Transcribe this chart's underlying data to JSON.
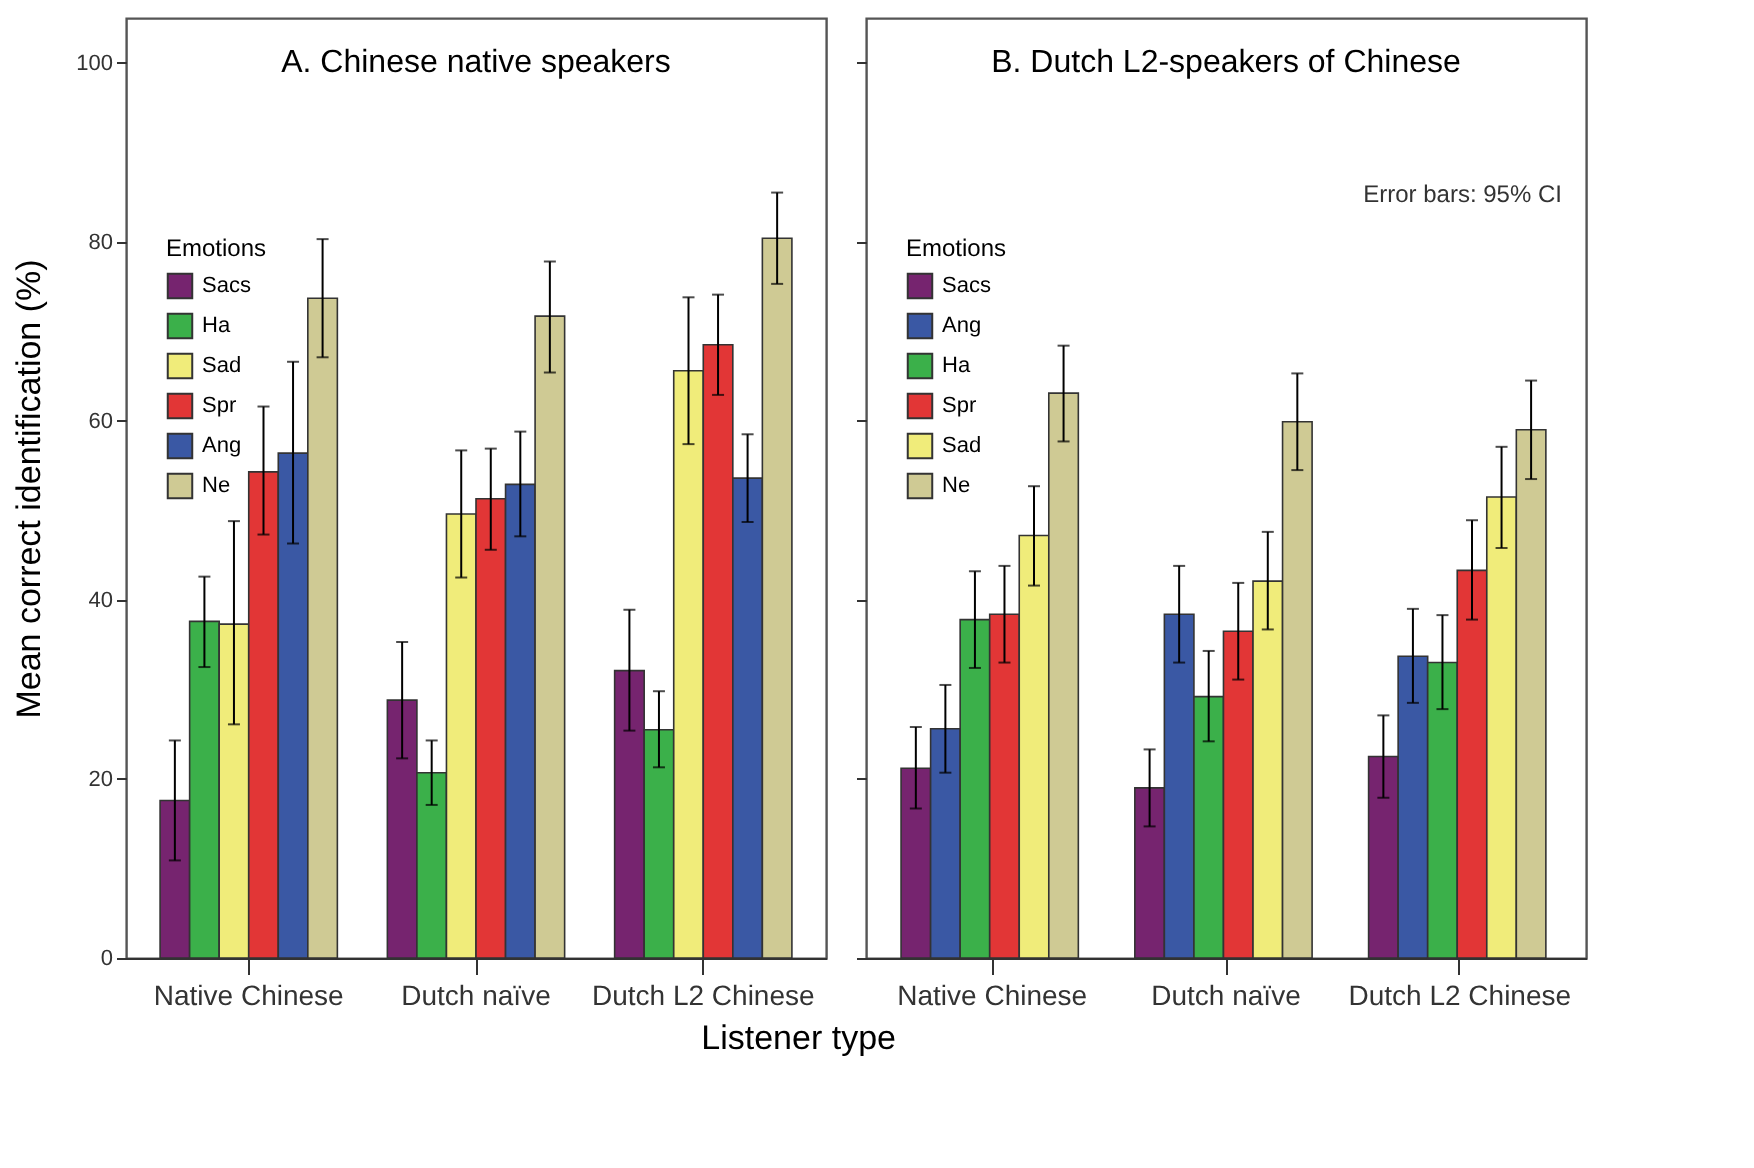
{
  "chart_data": [
    {
      "type": "bar",
      "title": "A. Chinese native speakers",
      "xlabel": "Listener type",
      "ylabel": "Mean correct identification (%)",
      "legend_title": "Emotions",
      "legend": "top left",
      "grid": false,
      "categories": [
        "Native Chinese",
        "Dutch naïve",
        "Dutch L2 Chinese"
      ],
      "ylim": [
        0,
        105
      ],
      "yticks": [
        0,
        20,
        40,
        60,
        80,
        100
      ],
      "series": [
        {
          "name": "Sacs",
          "color": "#76246f",
          "values": [
            17.6,
            28.8,
            32.1
          ],
          "errors": [
            [
              10.9,
              24.3
            ],
            [
              22.3,
              35.3
            ],
            [
              25.4,
              38.9
            ]
          ]
        },
        {
          "name": "Ha",
          "color": "#3bb04a",
          "values": [
            37.6,
            20.7,
            25.5
          ],
          "errors": [
            [
              32.5,
              42.6
            ],
            [
              17.1,
              24.3
            ],
            [
              21.3,
              29.8
            ]
          ]
        },
        {
          "name": "Sad",
          "color": "#f0ec7a",
          "values": [
            37.3,
            49.6,
            65.6
          ],
          "errors": [
            [
              26.1,
              48.8
            ],
            [
              42.5,
              56.7
            ],
            [
              57.4,
              73.8
            ]
          ]
        },
        {
          "name": "Spr",
          "color": "#e23636",
          "values": [
            54.3,
            51.3,
            68.5
          ],
          "errors": [
            [
              47.3,
              61.6
            ],
            [
              45.6,
              56.9
            ],
            [
              62.9,
              74.1
            ]
          ]
        },
        {
          "name": "Ang",
          "color": "#3a58a4",
          "values": [
            56.4,
            52.9,
            53.6
          ],
          "errors": [
            [
              46.3,
              66.6
            ],
            [
              47.1,
              58.8
            ],
            [
              48.7,
              58.5
            ]
          ]
        },
        {
          "name": "Ne",
          "color": "#cfca94",
          "values": [
            73.7,
            71.7,
            80.4
          ],
          "errors": [
            [
              67.1,
              80.3
            ],
            [
              65.4,
              77.8
            ],
            [
              75.3,
              85.5
            ]
          ]
        }
      ]
    },
    {
      "type": "bar",
      "title": "B. Dutch L2-speakers of Chinese",
      "legend_title": "Emotions",
      "legend": "top left",
      "grid": false,
      "tick_labels": "x",
      "annotations": [
        "Error bars: 95% CI"
      ],
      "categories": [
        "Native Chinese",
        "Dutch naïve",
        "Dutch L2 Chinese"
      ],
      "ylim": [
        0,
        105
      ],
      "yticks": [
        {
          "value": 0,
          "label": null
        },
        {
          "value": 20,
          "label": null
        },
        {
          "value": 40,
          "label": null
        },
        {
          "value": 60,
          "label": null
        },
        {
          "value": 80,
          "label": null
        },
        {
          "value": 100,
          "label": null
        }
      ],
      "series": [
        {
          "name": "Sacs",
          "color": "#76246f",
          "values": [
            21.2,
            19.0,
            22.5
          ],
          "errors": [
            [
              16.7,
              25.8
            ],
            [
              14.7,
              23.3
            ],
            [
              17.9,
              27.1
            ]
          ]
        },
        {
          "name": "Ang",
          "color": "#3a58a4",
          "values": [
            25.6,
            38.4,
            33.7
          ],
          "errors": [
            [
              20.7,
              30.5
            ],
            [
              33.0,
              43.8
            ],
            [
              28.5,
              39.0
            ]
          ]
        },
        {
          "name": "Ha",
          "color": "#3bb04a",
          "values": [
            37.8,
            29.2,
            33.0
          ],
          "errors": [
            [
              32.4,
              43.2
            ],
            [
              24.2,
              34.3
            ],
            [
              27.8,
              38.3
            ]
          ]
        },
        {
          "name": "Spr",
          "color": "#e23636",
          "values": [
            38.4,
            36.5,
            43.3
          ],
          "errors": [
            [
              33.0,
              43.8
            ],
            [
              31.1,
              41.9
            ],
            [
              37.8,
              48.9
            ]
          ]
        },
        {
          "name": "Sad",
          "color": "#f0ec7a",
          "values": [
            47.2,
            42.1,
            51.5
          ],
          "errors": [
            [
              41.6,
              52.7
            ],
            [
              36.7,
              47.6
            ],
            [
              45.8,
              57.1
            ]
          ]
        },
        {
          "name": "Ne",
          "color": "#cfca94",
          "values": [
            63.1,
            59.9,
            59.0
          ],
          "errors": [
            [
              57.7,
              68.4
            ],
            [
              54.5,
              65.3
            ],
            [
              53.5,
              64.5
            ]
          ]
        }
      ]
    }
  ]
}
